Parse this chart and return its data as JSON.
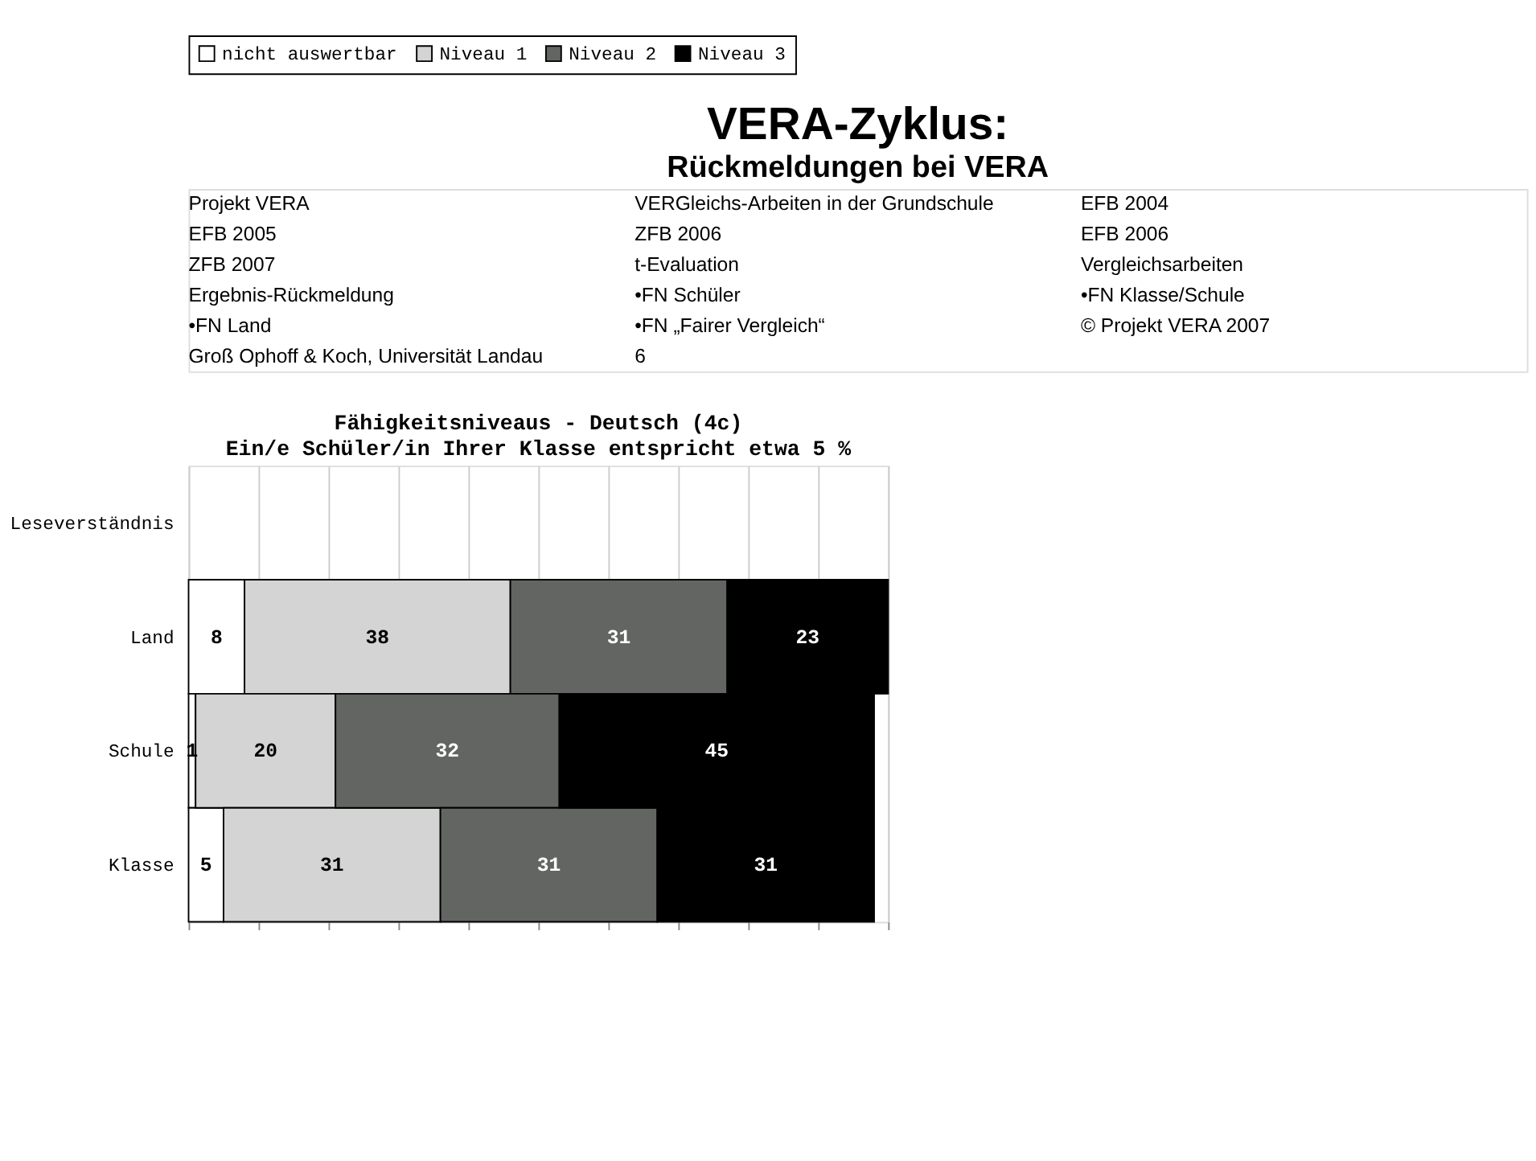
{
  "chart_data": [
    {
      "type": "other",
      "title": "VERA-Zyklus:",
      "subtitle": "Rückmeldungen bei VERA",
      "annotations": [
        "Projekt VERA",
        "VERGleichs-Arbeiten in der Grundschule",
        "EFB 2004",
        "EFB 2005",
        "ZFB 2006",
        "EFB 2006",
        "ZFB 2007",
        "t-Evaluation",
        "Vergleichsarbeiten",
        "Ergebnis-Rückmeldung",
        "•FN Schüler",
        "•FN Klasse/Schule",
        "•FN Land",
        "•FN „Fairer Vergleich“",
        "© Projekt VERA 2007",
        "Groß Ophoff & Koch, Universität Landau",
        "6"
      ]
    },
    {
      "type": "bar",
      "orientation": "horizontal",
      "stacked": true,
      "title": "Fähigkeitsniveaus - Deutsch (4c)",
      "subtitle": "Ein/e Schüler/in Ihrer Klasse entspricht etwa 5 %",
      "categories": [
        "Leseverständnis",
        "Land",
        "Schule",
        "Klasse"
      ],
      "series": [
        {
          "name": "nicht auswertbar",
          "color": "#ffffff",
          "values": [
            null,
            8,
            1,
            5
          ]
        },
        {
          "name": "Niveau 1",
          "color": "#d4d4d4",
          "values": [
            null,
            38,
            20,
            31
          ]
        },
        {
          "name": "Niveau 2",
          "color": "#636563",
          "values": [
            null,
            31,
            32,
            31
          ]
        },
        {
          "name": "Niveau 3",
          "color": "#000000",
          "values": [
            null,
            23,
            45,
            31
          ]
        }
      ],
      "xlim": [
        0,
        100
      ],
      "xticks": [
        {
          "value": 0,
          "label": null
        },
        {
          "value": 10,
          "label": null
        },
        {
          "value": 20,
          "label": null
        },
        {
          "value": 30,
          "label": null
        },
        {
          "value": 40,
          "label": null
        },
        {
          "value": 50,
          "label": null
        },
        {
          "value": 60,
          "label": null
        },
        {
          "value": 70,
          "label": null
        },
        {
          "value": 80,
          "label": null
        },
        {
          "value": 90,
          "label": null
        },
        {
          "value": 100,
          "label": null
        }
      ],
      "tick_labels": "y",
      "grid": "x",
      "legend": "top",
      "data_labels": true
    }
  ]
}
